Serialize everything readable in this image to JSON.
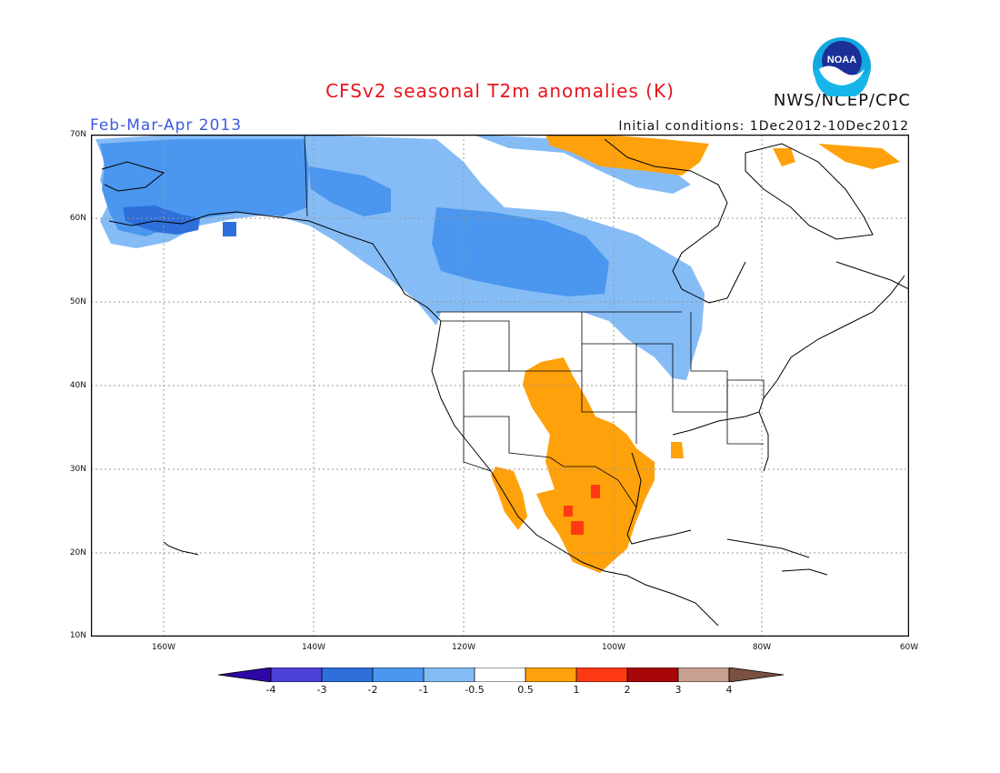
{
  "title": "CFSv2 seasonal T2m anomalies (K)",
  "season": "Feb-Mar-Apr 2013",
  "initial_conditions": "Initial conditions: 1Dec2012-10Dec2012",
  "agency": "NWS/NCEP/CPC",
  "logo_text": "NOAA",
  "lat_labels": [
    "70N",
    "60N",
    "50N",
    "40N",
    "30N",
    "20N",
    "10N"
  ],
  "lon_labels": [
    "160W",
    "140W",
    "120W",
    "100W",
    "80W",
    "60W"
  ],
  "colorbar": {
    "labels": [
      "-4",
      "-3",
      "-2",
      "-1",
      "-0.5",
      "0.5",
      "1",
      "2",
      "3",
      "4"
    ],
    "colors": [
      "#2e06a6",
      "#4d40d8",
      "#2e6fdb",
      "#4b96ee",
      "#85bcf6",
      "#ffffff",
      "#ffa10a",
      "#ff3a14",
      "#a70708",
      "#c8a090",
      "#7a5040"
    ]
  },
  "palette": {
    "border": "#000000",
    "grid": "#999999",
    "cold_dark": "#2e6fdb",
    "cold_mid": "#4b96ee",
    "cold_light": "#85bcf6",
    "warm_light": "#ffa10a",
    "warm_mid": "#ff3a14"
  }
}
